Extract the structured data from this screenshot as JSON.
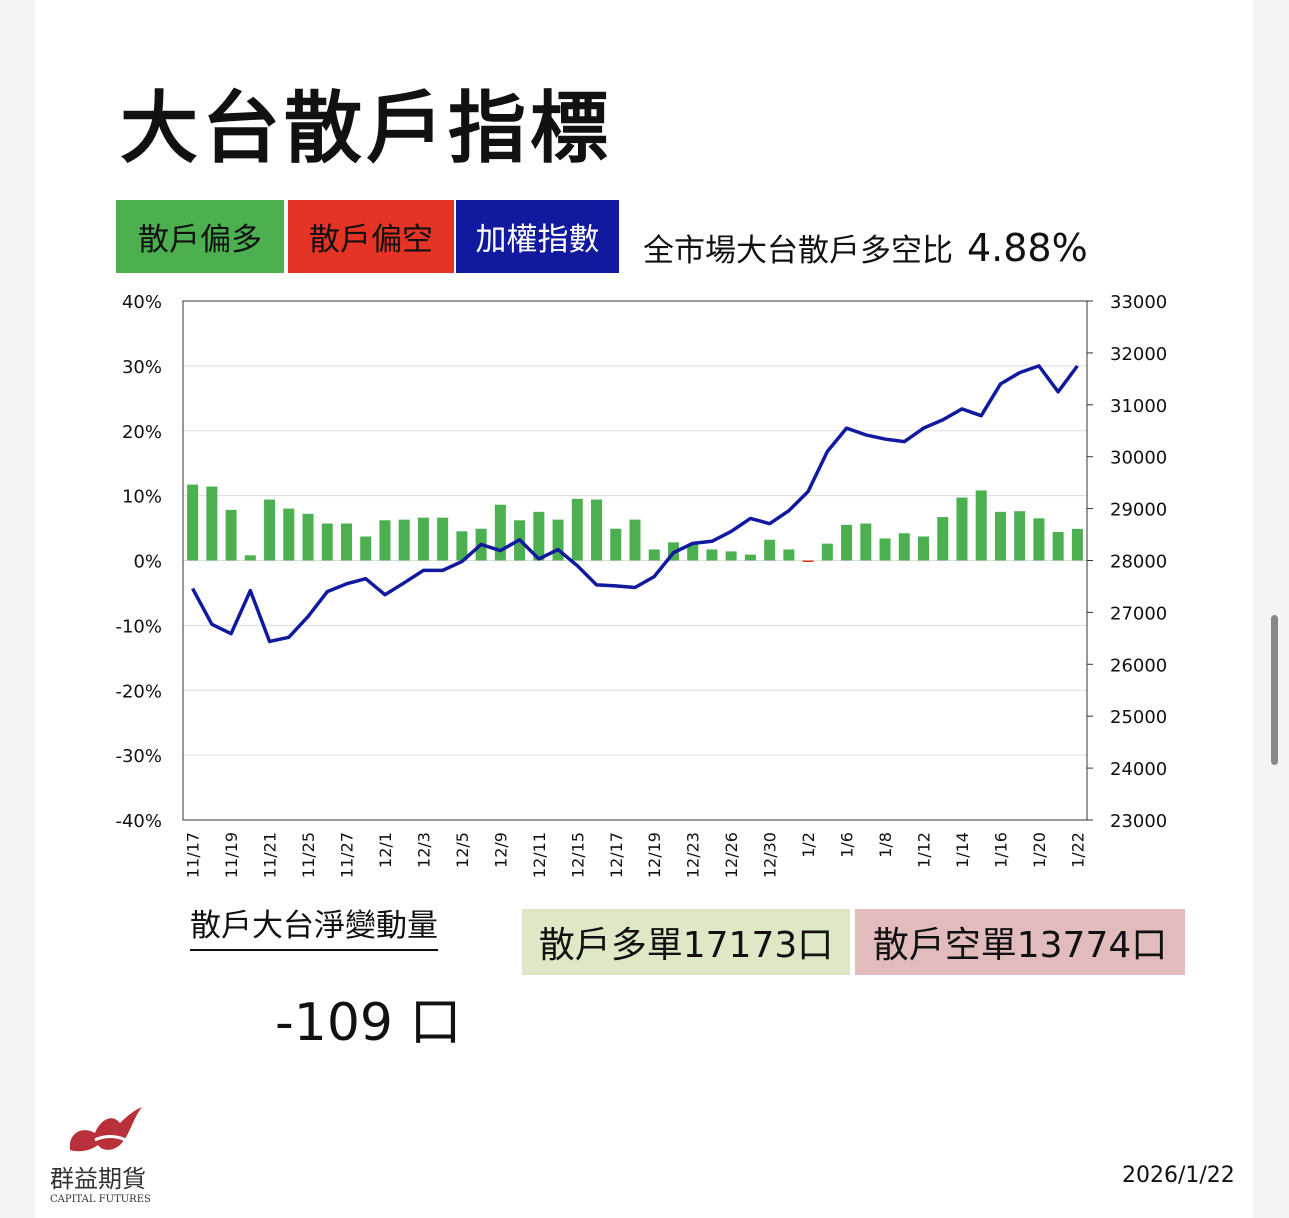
{
  "title": "大台散戶指標",
  "legend": [
    {
      "label": "散戶偏多",
      "color": "#4caf50"
    },
    {
      "label": "散戶偏空",
      "color": "#e53425"
    },
    {
      "label": "加權指數",
      "color": "#111a9e"
    }
  ],
  "ratio": {
    "label": "全市場大台散戶多空比",
    "value": "4.88%"
  },
  "net": {
    "label": "散戶大台淨變動量",
    "value": "-109 口"
  },
  "long": {
    "text": "散戶多單17173口",
    "color": "#dde8c6"
  },
  "short": {
    "text": "散戶空單13774口",
    "color": "#e2bcbc"
  },
  "date": "2026/1/22",
  "logo": {
    "name": "群益期貨",
    "sub": "CAPITAL FUTURES"
  },
  "chart_data": {
    "type": "bar+line",
    "left_axis": {
      "ylim": [
        -40,
        40
      ],
      "ticks": [
        "40%",
        "30%",
        "20%",
        "10%",
        "0%",
        "-10%",
        "-20%",
        "-30%",
        "-40%"
      ]
    },
    "right_axis": {
      "ylim": [
        23000,
        33000
      ],
      "ticks": [
        "33000",
        "32000",
        "31000",
        "30000",
        "29000",
        "28000",
        "27000",
        "26000",
        "25000",
        "24000",
        "23000"
      ]
    },
    "x_tick_labels": [
      "11/17",
      "11/19",
      "11/21",
      "11/25",
      "11/27",
      "12/1",
      "12/3",
      "12/5",
      "12/9",
      "12/11",
      "12/15",
      "12/17",
      "12/19",
      "12/23",
      "12/26",
      "12/30",
      "1/2",
      "1/6",
      "1/8",
      "1/12",
      "1/14",
      "1/16",
      "1/20",
      "1/22"
    ],
    "series": [
      {
        "name": "散戶多空比(%)",
        "type": "bar",
        "values": [
          11.7,
          11.4,
          7.8,
          0.8,
          9.4,
          8.0,
          7.2,
          5.7,
          5.7,
          3.7,
          6.2,
          6.3,
          6.6,
          6.6,
          4.5,
          4.9,
          8.6,
          6.2,
          7.5,
          6.3,
          9.5,
          9.4,
          4.9,
          6.3,
          1.7,
          2.8,
          2.5,
          1.7,
          1.4,
          0.9,
          3.2,
          1.7,
          -0.2,
          2.6,
          5.5,
          5.7,
          3.4,
          4.2,
          3.7,
          6.7,
          9.7,
          10.8,
          7.5,
          7.6,
          6.5,
          4.4,
          4.88
        ]
      },
      {
        "name": "加權指數",
        "type": "line",
        "values": [
          27460,
          26770,
          26590,
          27420,
          26440,
          26520,
          26920,
          27400,
          27550,
          27650,
          27340,
          27570,
          27810,
          27810,
          27980,
          28310,
          28190,
          28400,
          28030,
          28210,
          27900,
          27530,
          27510,
          27480,
          27690,
          28150,
          28330,
          28370,
          28560,
          28810,
          28710,
          28960,
          29330,
          30100,
          30550,
          30420,
          30340,
          30290,
          30550,
          30710,
          30920,
          30790,
          31400,
          31620,
          31750,
          31250,
          31750
        ]
      }
    ]
  }
}
